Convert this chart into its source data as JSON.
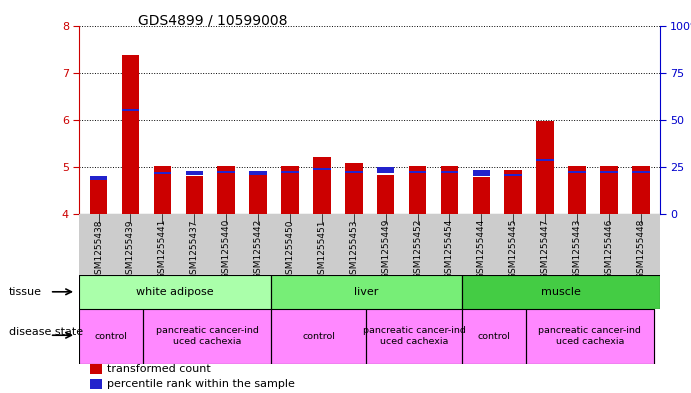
{
  "title": "GDS4899 / 10599008",
  "samples": [
    "GSM1255438",
    "GSM1255439",
    "GSM1255441",
    "GSM1255437",
    "GSM1255440",
    "GSM1255442",
    "GSM1255450",
    "GSM1255451",
    "GSM1255453",
    "GSM1255449",
    "GSM1255452",
    "GSM1255454",
    "GSM1255444",
    "GSM1255445",
    "GSM1255447",
    "GSM1255443",
    "GSM1255446",
    "GSM1255448"
  ],
  "red_values": [
    4.72,
    7.38,
    5.02,
    4.82,
    5.02,
    4.83,
    5.02,
    5.22,
    5.08,
    4.83,
    5.02,
    5.02,
    4.78,
    4.93,
    5.98,
    5.02,
    5.02,
    5.02
  ],
  "blue_values": [
    4.72,
    6.18,
    4.85,
    4.83,
    4.87,
    4.83,
    4.87,
    4.93,
    4.88,
    4.87,
    4.87,
    4.87,
    4.82,
    4.82,
    5.13,
    4.87,
    4.87,
    4.87
  ],
  "ymin": 4.0,
  "ymax": 8.0,
  "yticks_left": [
    4,
    5,
    6,
    7,
    8
  ],
  "yticks_right": [
    0,
    25,
    50,
    75,
    100
  ],
  "bar_color": "#cc0000",
  "blue_color": "#2222cc",
  "bar_width": 0.55,
  "xticklabel_bg": "#cccccc",
  "tissue_colors": [
    "#aaffaa",
    "#77ee77",
    "#44cc44"
  ],
  "tissue_labels": [
    "white adipose",
    "liver",
    "muscle"
  ],
  "tissue_ranges": [
    [
      0,
      6
    ],
    [
      6,
      12
    ],
    [
      12,
      18
    ]
  ],
  "disease_color": "#ff88ff",
  "disease_groups": [
    {
      "label": "control",
      "range": [
        0,
        2
      ]
    },
    {
      "label": "pancreatic cancer-ind\nuced cachexia",
      "range": [
        2,
        6
      ]
    },
    {
      "label": "control",
      "range": [
        6,
        9
      ]
    },
    {
      "label": "pancreatic cancer-ind\nuced cachexia",
      "range": [
        9,
        12
      ]
    },
    {
      "label": "control",
      "range": [
        12,
        14
      ]
    },
    {
      "label": "pancreatic cancer-ind\nuced cachexia",
      "range": [
        14,
        18
      ]
    }
  ],
  "left_color": "#cc0000",
  "right_color": "#0000cc",
  "legend": [
    {
      "color": "#cc0000",
      "label": "transformed count"
    },
    {
      "color": "#2222cc",
      "label": "percentile rank within the sample"
    }
  ]
}
